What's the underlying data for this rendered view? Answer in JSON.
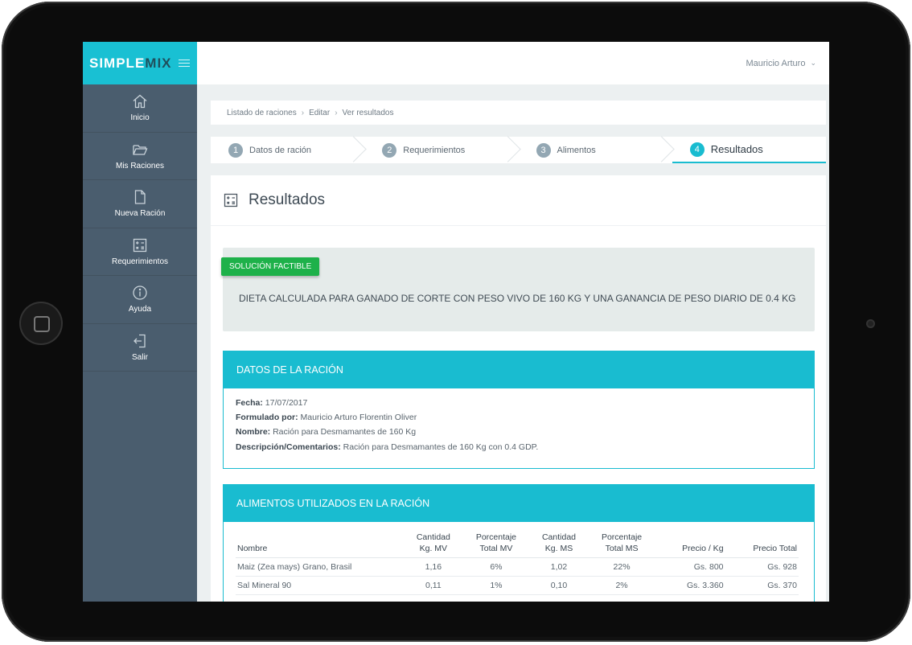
{
  "brand": {
    "simple": "SIMPLE",
    "mix": "MIX"
  },
  "user": {
    "name": "Mauricio Arturo"
  },
  "sidebar": {
    "items": [
      {
        "label": "Inicio",
        "icon": "home-icon"
      },
      {
        "label": "Mis Raciones",
        "icon": "folder-icon"
      },
      {
        "label": "Nueva Ración",
        "icon": "file-icon"
      },
      {
        "label": "Requerimientos",
        "icon": "calculator-icon"
      },
      {
        "label": "Ayuda",
        "icon": "info-icon"
      },
      {
        "label": "Salir",
        "icon": "logout-icon"
      }
    ]
  },
  "breadcrumb": [
    "Listado de raciones",
    "Editar",
    "Ver resultados"
  ],
  "steps": [
    {
      "num": "1",
      "label": "Datos de ración"
    },
    {
      "num": "2",
      "label": "Requerimientos"
    },
    {
      "num": "3",
      "label": "Alimentos"
    },
    {
      "num": "4",
      "label": "Resultados"
    }
  ],
  "panel": {
    "title": "Resultados"
  },
  "result": {
    "badge": "SOLUCIÓN FACTIBLE",
    "text": "DIETA CALCULADA PARA GANADO DE CORTE CON PESO VIVO DE 160 KG Y UNA GANANCIA DE PESO DIARIO DE 0.4 KG"
  },
  "datos": {
    "title": "DATOS DE LA RACIÓN",
    "fecha_label": "Fecha:",
    "fecha": "17/07/2017",
    "formulado_label": "Formulado por:",
    "formulado": "Mauricio Arturo Florentin Oliver",
    "nombre_label": "Nombre:",
    "nombre": "Ración para Desmamantes de 160 Kg",
    "descripcion_label": "Descripción/Comentarios:",
    "descripcion": "Ración para Desmamantes de 160 Kg con 0.4 GDP."
  },
  "alimentos": {
    "title": "ALIMENTOS UTILIZADOS EN LA RACIÓN",
    "headers": {
      "nombre": "Nombre",
      "kg_mv_1": "Cantidad",
      "kg_mv_2": "Kg. MV",
      "pct_mv_1": "Porcentaje",
      "pct_mv_2": "Total MV",
      "kg_ms_1": "Cantidad",
      "kg_ms_2": "Kg. MS",
      "pct_ms_1": "Porcentaje",
      "pct_ms_2": "Total MS",
      "precio": "Precio / Kg",
      "total": "Precio Total"
    },
    "rows": [
      {
        "nombre": "Maiz (Zea mays) Grano, Brasil",
        "kg_mv": "1,16",
        "pct_mv": "6%",
        "kg_ms": "1,02",
        "pct_ms": "22%",
        "precio": "Gs. 800",
        "total": "Gs. 928"
      },
      {
        "nombre": "Sal Mineral 90",
        "kg_mv": "0,11",
        "pct_mv": "1%",
        "kg_ms": "0,10",
        "pct_ms": "2%",
        "precio": "Gs. 3.360",
        "total": "Gs. 370"
      }
    ]
  }
}
